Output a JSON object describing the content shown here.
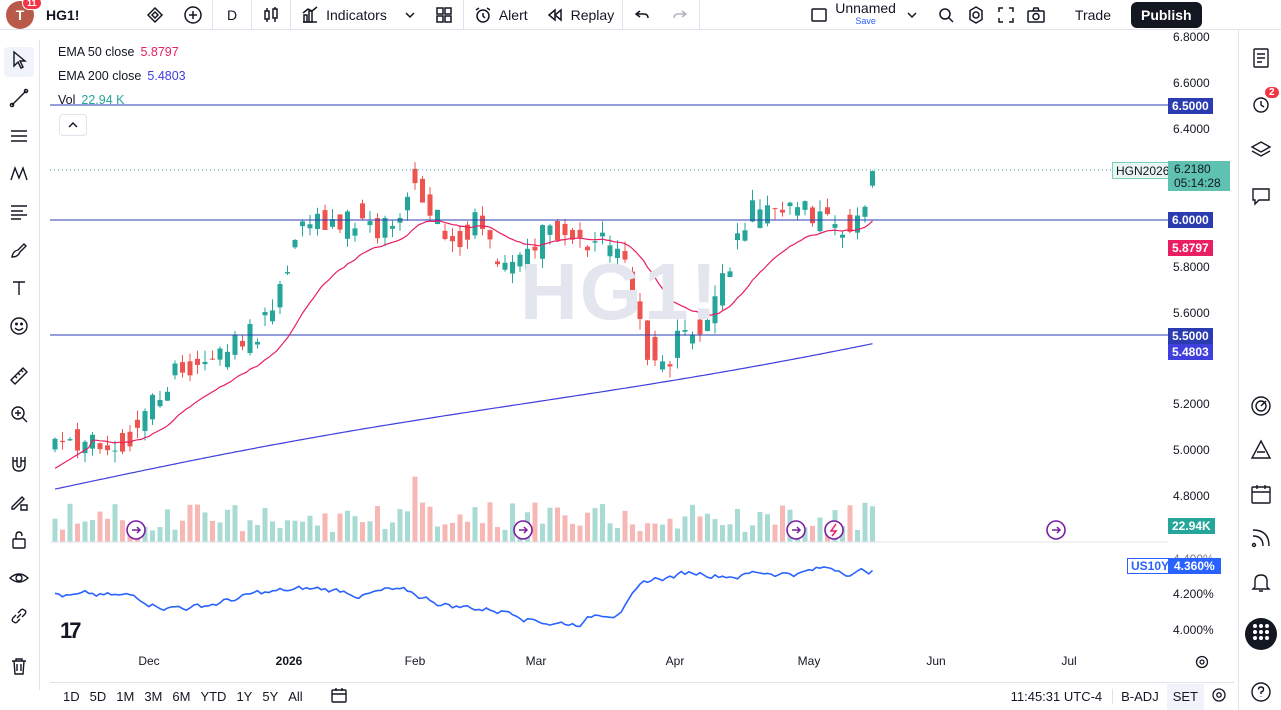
{
  "topbar": {
    "avatar_letter": "T",
    "avatar_badge": "11",
    "symbol": "HG1!",
    "interval": "D",
    "indicators_label": "Indicators",
    "alert_label": "Alert",
    "replay_label": "Replay",
    "layout_name": "Unnamed",
    "layout_sub": "Save",
    "trade_label": "Trade",
    "publish_label": "Publish"
  },
  "legend": {
    "ema50_label": "EMA 50 close",
    "ema50_value": "5.8797",
    "ema200_label": "EMA 200 close",
    "ema200_value": "5.4803",
    "vol_label": "Vol",
    "vol_value": "22.94 K"
  },
  "watermark": "HG1!",
  "price_axis": {
    "ticks": [
      "6.8000",
      "6.6000",
      "6.4000",
      "5.8000",
      "5.6000",
      "5.2000",
      "5.0000",
      "4.8000"
    ],
    "line_6500": "6.5000",
    "line_6000": "6.0000",
    "line_5500": "5.5000",
    "ema50_badge": "5.8797",
    "ema200_badge": "5.4803",
    "current_symbol": "HGN2026",
    "current_price": "6.2180",
    "countdown": "05:14:28",
    "volume_badge": "22.94K"
  },
  "lower_pane": {
    "symbol": "US10Y",
    "value": "4.360%",
    "ticks": [
      "4.400%",
      "4.200%",
      "4.000%"
    ]
  },
  "time_axis": [
    "Dec",
    "2026",
    "Feb",
    "Mar",
    "Apr",
    "May",
    "Jun",
    "Jul"
  ],
  "bottombar": {
    "ranges": [
      "1D",
      "5D",
      "1M",
      "3M",
      "6M",
      "YTD",
      "1Y",
      "5Y",
      "All"
    ],
    "clock": "11:45:31 UTC-4",
    "adjust": "B-ADJ",
    "session": "SET"
  },
  "right_sidebar": {
    "alerts_badge": "2"
  },
  "colors": {
    "up": "#26a69a",
    "down": "#ef5350",
    "ema50": "#e91e63",
    "ema200": "#3f3fdd",
    "us10y": "#2962ff",
    "hline": "#2a3cb0"
  }
}
